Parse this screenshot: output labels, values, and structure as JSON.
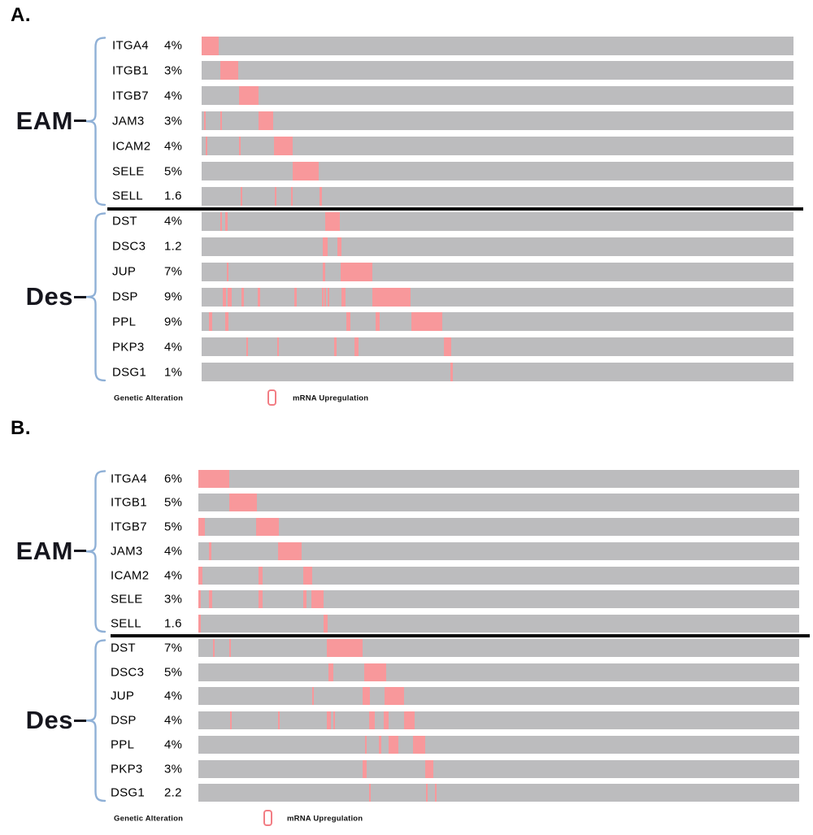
{
  "colors": {
    "bar_gray": "#bcbcbe",
    "alteration_pink": "#f8989b",
    "legend_swatch_pink": "#f27d84",
    "bracket_blue": "#8fb0d6",
    "divider_black": "#0b0b0b",
    "text_black": "#000000"
  },
  "chart_data": {
    "type": "oncoprint",
    "legend_note": "pink segments mark samples with mRNA upregulation; value after gene is alteration frequency",
    "panels": [
      {
        "label": "A.",
        "legend": {
          "left": "Genetic Alteration",
          "right": "mRNA Upregulation"
        },
        "groups": [
          {
            "name": "EAM",
            "genes": [
              {
                "gene": "ITGA4",
                "freq": "4%",
                "segments": [
                  [
                    0,
                    2.9
                  ]
                ]
              },
              {
                "gene": "ITGB1",
                "freq": "3%",
                "segments": [
                  [
                    3.1,
                    3.1
                  ]
                ]
              },
              {
                "gene": "ITGB7",
                "freq": "4%",
                "segments": [
                  [
                    6.35,
                    3.2
                  ]
                ]
              },
              {
                "gene": "JAM3",
                "freq": "3%",
                "segments": [
                  [
                    0.4,
                    0.25
                  ],
                  [
                    3.1,
                    0.3
                  ],
                  [
                    9.65,
                    2.45
                  ]
                ]
              },
              {
                "gene": "ICAM2",
                "freq": "4%",
                "segments": [
                  [
                    0.75,
                    0.25
                  ],
                  [
                    6.35,
                    0.25
                  ],
                  [
                    12.2,
                    3.2
                  ]
                ]
              },
              {
                "gene": "SELE",
                "freq": "5%",
                "segments": [
                  [
                    15.4,
                    4.4
                  ]
                ]
              },
              {
                "gene": "SELL",
                "freq": "1.6",
                "segments": [
                  [
                    6.6,
                    0.3
                  ],
                  [
                    12.3,
                    0.3
                  ],
                  [
                    15.15,
                    0.3
                  ],
                  [
                    19.85,
                    0.45
                  ]
                ]
              }
            ]
          },
          {
            "name": "Des",
            "genes": [
              {
                "gene": "DST",
                "freq": "4%",
                "segments": [
                  [
                    3.1,
                    0.25
                  ],
                  [
                    4.05,
                    0.3
                  ],
                  [
                    20.85,
                    2.45
                  ]
                ]
              },
              {
                "gene": "DSC3",
                "freq": "1.2",
                "segments": [
                  [
                    20.5,
                    0.75
                  ],
                  [
                    22.95,
                    0.7
                  ]
                ]
              },
              {
                "gene": "JUP",
                "freq": "7%",
                "segments": [
                  [
                    4.3,
                    0.3
                  ],
                  [
                    20.5,
                    0.35
                  ],
                  [
                    23.5,
                    5.4
                  ]
                ]
              },
              {
                "gene": "DSP",
                "freq": "9%",
                "segments": [
                  [
                    3.6,
                    0.55
                  ],
                  [
                    4.45,
                    0.6
                  ],
                  [
                    6.7,
                    0.45
                  ],
                  [
                    9.45,
                    0.45
                  ],
                  [
                    15.6,
                    0.45
                  ],
                  [
                    20.3,
                    0.3
                  ],
                  [
                    20.75,
                    0.2
                  ],
                  [
                    21.3,
                    0.3
                  ],
                  [
                    23.65,
                    0.6
                  ],
                  [
                    28.9,
                    6.4
                  ]
                ]
              },
              {
                "gene": "PPL",
                "freq": "9%",
                "segments": [
                  [
                    1.25,
                    0.5
                  ],
                  [
                    3.95,
                    0.55
                  ],
                  [
                    24.4,
                    0.8
                  ],
                  [
                    29.4,
                    0.7
                  ],
                  [
                    35.4,
                    5.3
                  ]
                ]
              },
              {
                "gene": "PKP3",
                "freq": "4%",
                "segments": [
                  [
                    7.55,
                    0.3
                  ],
                  [
                    12.75,
                    0.3
                  ],
                  [
                    22.4,
                    0.4
                  ],
                  [
                    25.8,
                    0.7
                  ],
                  [
                    40.9,
                    1.25
                  ]
                ]
              },
              {
                "gene": "DSG1",
                "freq": "1%",
                "segments": [
                  [
                    42,
                    0.5
                  ]
                ]
              }
            ]
          }
        ]
      },
      {
        "label": "B.",
        "legend": {
          "left": "Genetic Alteration",
          "right": "mRNA Upregulation"
        },
        "groups": [
          {
            "name": "EAM",
            "genes": [
              {
                "gene": "ITGA4",
                "freq": "6%",
                "segments": [
                  [
                    0,
                    5.1
                  ]
                ]
              },
              {
                "gene": "ITGB1",
                "freq": "5%",
                "segments": [
                  [
                    5.1,
                    4.7
                  ]
                ]
              },
              {
                "gene": "ITGB7",
                "freq": "5%",
                "segments": [
                  [
                    0,
                    1.1
                  ],
                  [
                    9.6,
                    3.85
                  ]
                ]
              },
              {
                "gene": "JAM3",
                "freq": "4%",
                "segments": [
                  [
                    1.8,
                    0.3
                  ],
                  [
                    13.2,
                    4.05
                  ]
                ]
              },
              {
                "gene": "ICAM2",
                "freq": "4%",
                "segments": [
                  [
                    0,
                    0.65
                  ],
                  [
                    10,
                    0.65
                  ],
                  [
                    17.4,
                    1.55
                  ]
                ]
              },
              {
                "gene": "SELE",
                "freq": "3%",
                "segments": [
                  [
                    0,
                    0.45
                  ],
                  [
                    1.8,
                    0.45
                  ],
                  [
                    10,
                    0.65
                  ],
                  [
                    17.4,
                    0.55
                  ],
                  [
                    18.75,
                    2.1
                  ]
                ]
              },
              {
                "gene": "SELL",
                "freq": "1.6",
                "segments": [
                  [
                    0,
                    0.45
                  ],
                  [
                    20.9,
                    0.55
                  ]
                ]
              }
            ]
          },
          {
            "name": "Des",
            "genes": [
              {
                "gene": "DST",
                "freq": "7%",
                "segments": [
                  [
                    2.45,
                    0.3
                  ],
                  [
                    5.1,
                    0.3
                  ],
                  [
                    21.4,
                    6
                  ]
                ]
              },
              {
                "gene": "DSC3",
                "freq": "5%",
                "segments": [
                  [
                    21.6,
                    0.8
                  ],
                  [
                    27.6,
                    3.65
                  ]
                ]
              },
              {
                "gene": "JUP",
                "freq": "4%",
                "segments": [
                  [
                    18.95,
                    0.3
                  ],
                  [
                    27.4,
                    1.2
                  ],
                  [
                    31.05,
                    3.2
                  ]
                ]
              },
              {
                "gene": "DSP",
                "freq": "4%",
                "segments": [
                  [
                    5.3,
                    0.3
                  ],
                  [
                    13.3,
                    0.3
                  ],
                  [
                    21.4,
                    0.7
                  ],
                  [
                    22.4,
                    0.3
                  ],
                  [
                    28.4,
                    1
                  ],
                  [
                    30.9,
                    0.8
                  ],
                  [
                    34.25,
                    1.8
                  ]
                ]
              },
              {
                "gene": "PPL",
                "freq": "4%",
                "segments": [
                  [
                    27.75,
                    0.3
                  ],
                  [
                    30.05,
                    0.35
                  ],
                  [
                    31.6,
                    1.65
                  ],
                  [
                    35.7,
                    2
                  ]
                ]
              },
              {
                "gene": "PKP3",
                "freq": "3%",
                "segments": [
                  [
                    27.4,
                    0.55
                  ],
                  [
                    37.7,
                    1.35
                  ]
                ]
              },
              {
                "gene": "DSG1",
                "freq": "2.2",
                "segments": [
                  [
                    28.4,
                    0.35
                  ],
                  [
                    37.9,
                    0.3
                  ],
                  [
                    39.4,
                    0.3
                  ]
                ]
              }
            ]
          }
        ]
      }
    ]
  }
}
